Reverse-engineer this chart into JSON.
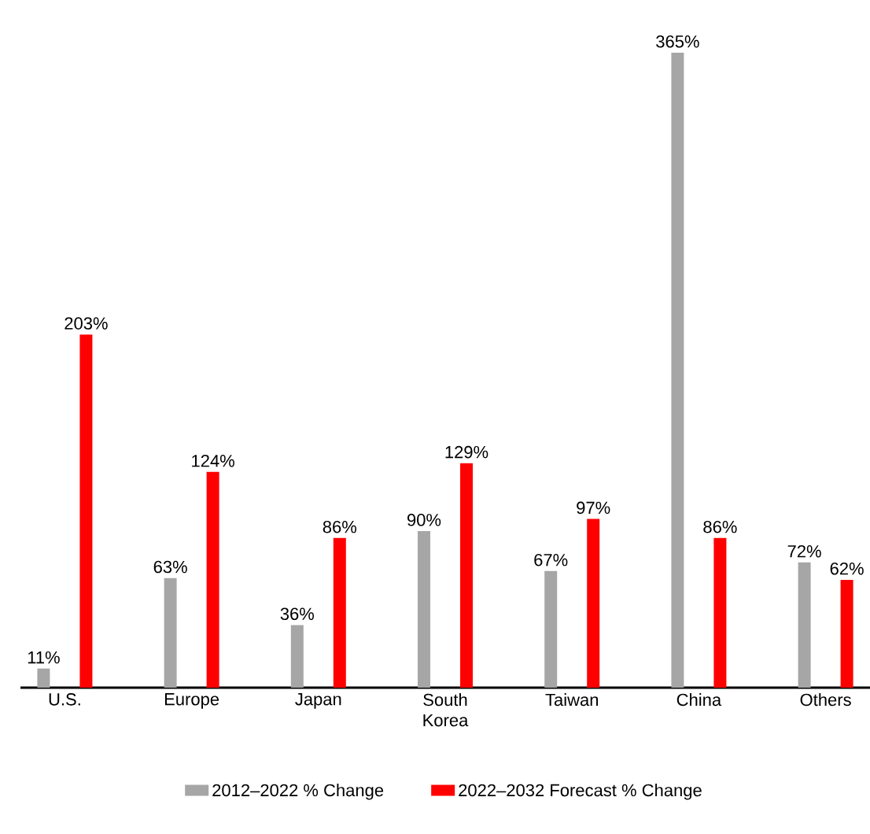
{
  "chart_data": {
    "type": "bar",
    "categories": [
      "U.S.",
      "Europe",
      "Japan",
      "South Korea",
      "Taiwan",
      "China",
      "Others"
    ],
    "series": [
      {
        "name": "2012–2022 % Change",
        "color": "#a6a6a6",
        "values": [
          11,
          63,
          36,
          90,
          67,
          365,
          72
        ],
        "value_labels": [
          "11%",
          "63%",
          "36%",
          "90%",
          "67%",
          "365%",
          "72%"
        ]
      },
      {
        "name": "2022–2032 Forecast % Change",
        "color": "#ff0000",
        "values": [
          203,
          124,
          86,
          129,
          97,
          86,
          62
        ],
        "value_labels": [
          "203%",
          "124%",
          "86%",
          "129%",
          "97%",
          "86%",
          "62%"
        ]
      }
    ],
    "legend": "bottom"
  }
}
